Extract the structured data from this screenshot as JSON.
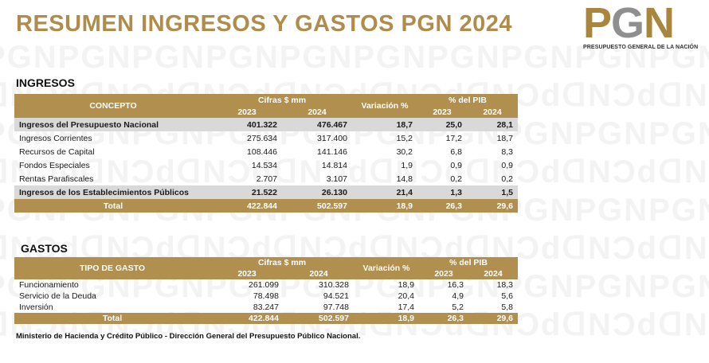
{
  "title": "RESUMEN INGRESOS Y GASTOS PGN 2024",
  "logo": {
    "p": "P",
    "g": "G",
    "n": "N",
    "subtitle": "PRESUPUESTO GENERAL DE LA NACIÓN"
  },
  "ingresos": {
    "section_title": "INGRESOS",
    "headers": {
      "concepto": "CONCEPTO",
      "cifras": "Cifras $ mm",
      "variacion": "Variación %",
      "pib": "% del PIB",
      "y2023": "2023",
      "y2024": "2024",
      "pib2023": "2023",
      "pib2024": "2024"
    },
    "rows": [
      {
        "label": "Ingresos del Presupuesto Nacional",
        "v2023": "401.322",
        "v2024": "476.467",
        "var": "18,7",
        "pib2023": "25,0",
        "pib2024": "28,1",
        "bold": true
      },
      {
        "label": "Ingresos Corrientes",
        "v2023": "275.634",
        "v2024": "317.400",
        "var": "15,2",
        "pib2023": "17,2",
        "pib2024": "18,7"
      },
      {
        "label": "Recursos de Capital",
        "v2023": "108.446",
        "v2024": "141.146",
        "var": "30,2",
        "pib2023": "6,8",
        "pib2024": "8,3"
      },
      {
        "label": "Fondos Especiales",
        "v2023": "14.534",
        "v2024": "14.814",
        "var": "1,9",
        "pib2023": "0,9",
        "pib2024": "0,9"
      },
      {
        "label": "Rentas Parafiscales",
        "v2023": "2.707",
        "v2024": "3.107",
        "var": "14,8",
        "pib2023": "0,2",
        "pib2024": "0,2"
      },
      {
        "label": "Ingresos de los Establecimientos Públicos",
        "v2023": "21.522",
        "v2024": "26.130",
        "var": "21,4",
        "pib2023": "1,3",
        "pib2024": "1,5",
        "bold": true
      }
    ],
    "total": {
      "label": "Total",
      "v2023": "422.844",
      "v2024": "502.597",
      "var": "18,9",
      "pib2023": "26,3",
      "pib2024": "29,6"
    }
  },
  "gastos": {
    "section_title": "GASTOS",
    "headers": {
      "tipo": "TIPO  DE GASTO",
      "cifras": "Cifras $ mm",
      "variacion": "Variación %",
      "pib": "% del PIB",
      "y2023": "2023",
      "y2024": "2024",
      "pib2023": "2023",
      "pib2024": "2024"
    },
    "rows": [
      {
        "label": "Funcionamiento",
        "v2023": "261.099",
        "v2024": "310.328",
        "var": "18,9",
        "pib2023": "16,3",
        "pib2024": "18,3"
      },
      {
        "label": "Servicio de la Deuda",
        "v2023": "78.498",
        "v2024": "94.521",
        "var": "20,4",
        "pib2023": "4,9",
        "pib2024": "5,6"
      },
      {
        "label": "Inversión",
        "v2023": "83.247",
        "v2024": "97.748",
        "var": "17,4",
        "pib2023": "5,2",
        "pib2024": "5,8"
      }
    ],
    "total": {
      "label": "Total",
      "v2023": "422.844",
      "v2024": "502.597",
      "var": "18,9",
      "pib2023": "26,3",
      "pib2024": "29,6"
    }
  },
  "footer": "Ministerio de Hacienda y Crédito Público - Dirección General del Presupuesto Público Nacional."
}
